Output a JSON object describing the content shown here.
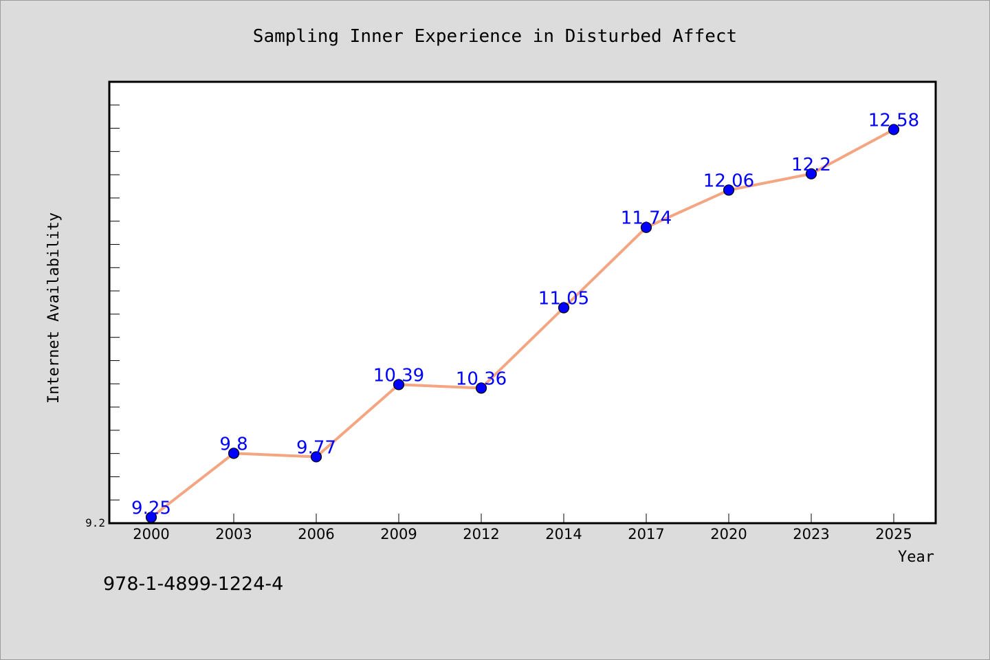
{
  "chart_data": {
    "type": "line",
    "title": "Sampling Inner Experience in Disturbed Affect",
    "xlabel": "Year",
    "ylabel": "Internet Availability",
    "categories": [
      "2000",
      "2003",
      "2006",
      "2009",
      "2012",
      "2014",
      "2017",
      "2020",
      "2023",
      "2025"
    ],
    "series": [
      {
        "values": [
          9.25,
          9.8,
          9.77,
          10.39,
          10.36,
          11.05,
          11.74,
          12.06,
          12.2,
          12.58
        ]
      }
    ],
    "data_labels": [
      "9.25",
      "9.8",
      "9.77",
      "10.39",
      "10.36",
      "11.05",
      "11.74",
      "12.06",
      "12.2",
      "12.58"
    ],
    "ylim": [
      9.2,
      12.99
    ],
    "y_tick_labels": [
      "9.2"
    ],
    "grid": false,
    "legend": "none",
    "colors": {
      "line": "#f4a582",
      "marker": "#0000ff",
      "data_label": "#0000ff",
      "plot_background": "#ffffff",
      "page_background": "#dcdcdc"
    }
  },
  "footer": {
    "isbn": "978-1-4899-1224-4"
  }
}
